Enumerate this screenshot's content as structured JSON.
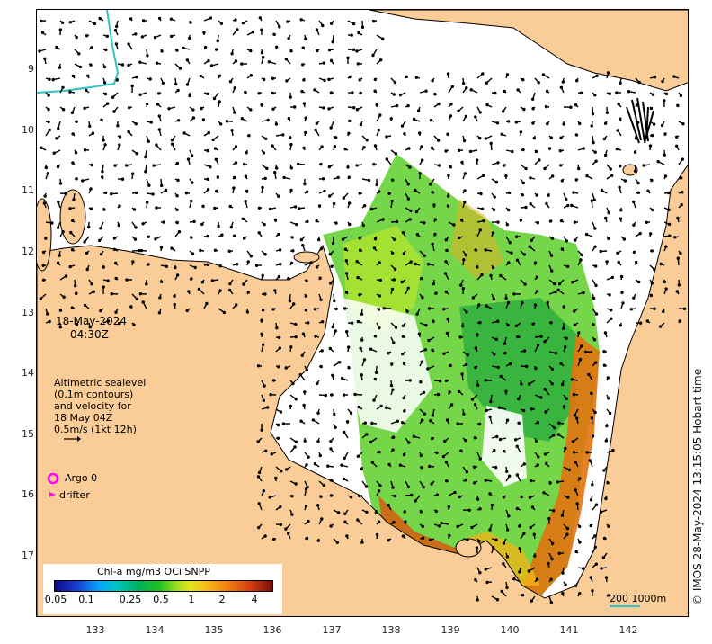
{
  "date": {
    "line1": "18-May-2024",
    "line2": "04:30Z"
  },
  "altimetry": {
    "line1": "Altimetric sealevel",
    "line2": "(0.1m contours)",
    "line3": "and velocity for",
    "line4": "18 May 04Z",
    "line5": "0.5m/s (1kt 12h)"
  },
  "legend": {
    "argo": "Argo 0",
    "drifter": "drifter",
    "argo_color": "#ff00ff",
    "drifter_color": "#ff00ff"
  },
  "colorbar": {
    "title": "Chl-a mg/m3 OCi SNPP",
    "ticks": [
      "0.05",
      "0.1",
      "0.25",
      "0.5",
      "1",
      "2",
      "4"
    ]
  },
  "scale": {
    "label": "200  1000m"
  },
  "credit": "© IMOS 28-May-2024 13:15:05 Hobart time",
  "axes": {
    "lat_ticks": [
      "9",
      "10",
      "11",
      "12",
      "13",
      "14",
      "15",
      "16",
      "17"
    ],
    "lon_ticks": [
      "133",
      "134",
      "135",
      "136",
      "137",
      "138",
      "139",
      "140",
      "141",
      "142"
    ]
  },
  "colors": {
    "land": "#facc98",
    "coast": "#000000",
    "contour": "#2ec4c4",
    "vector": "#000000"
  }
}
